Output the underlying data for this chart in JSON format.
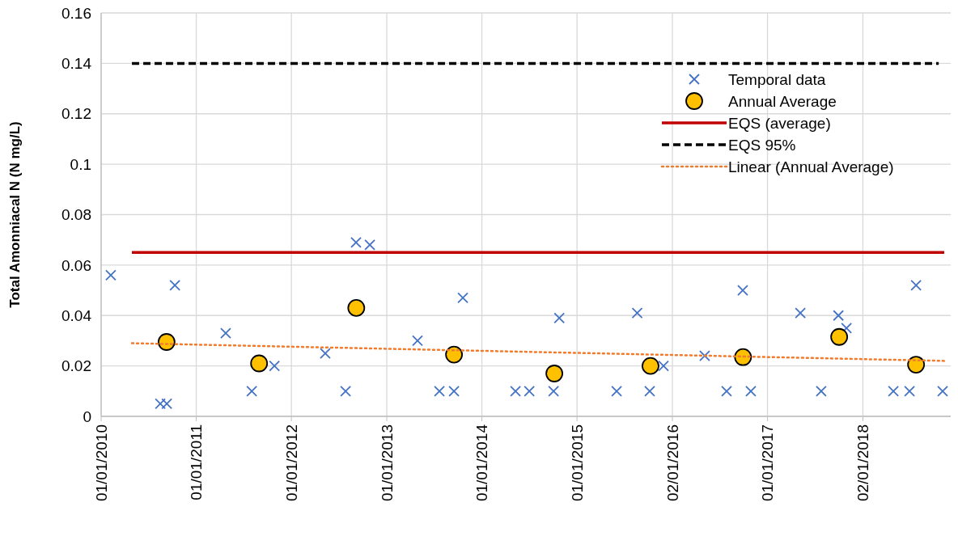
{
  "chart_data": {
    "type": "scatter",
    "ylabel": "Total Amonniacal N (N mg/L)",
    "xlim": [
      "2010-01-01",
      "2018-12-05"
    ],
    "ylim": [
      0,
      0.16
    ],
    "xticks": [
      {
        "value": "2010-01-01",
        "label": "01/01/2010"
      },
      {
        "value": "2011-01-01",
        "label": "01/01/2011"
      },
      {
        "value": "2012-01-01",
        "label": "01/01/2012"
      },
      {
        "value": "2013-01-01",
        "label": "01/01/2013"
      },
      {
        "value": "2014-01-01",
        "label": "01/01/2014"
      },
      {
        "value": "2015-01-01",
        "label": "01/01/2015"
      },
      {
        "value": "2016-01-02",
        "label": "02/01/2016"
      },
      {
        "value": "2017-01-01",
        "label": "01/01/2017"
      },
      {
        "value": "2018-01-02",
        "label": "02/01/2018"
      }
    ],
    "yticks": [
      0,
      0.02,
      0.04,
      0.06,
      0.08,
      0.1,
      0.12,
      0.14,
      0.16
    ],
    "grid": true,
    "legend": "top right",
    "series": [
      {
        "name": "Temporal data",
        "marker": "cross",
        "color": "#4472c4",
        "x": [
          "2010-02-07",
          "2010-08-16",
          "2010-09-10",
          "2010-10-11",
          "2011-04-24",
          "2011-08-02",
          "2011-10-28",
          "2012-05-10",
          "2012-07-27",
          "2012-09-05",
          "2012-10-28",
          "2013-04-29",
          "2013-07-22",
          "2013-09-16",
          "2013-10-20",
          "2014-05-10",
          "2014-07-02",
          "2014-10-03",
          "2014-10-25",
          "2015-06-02",
          "2015-08-20",
          "2015-10-07",
          "2015-11-29",
          "2016-05-05",
          "2016-07-28",
          "2016-09-28",
          "2016-10-29",
          "2017-05-07",
          "2017-07-26",
          "2017-09-30",
          "2017-10-31",
          "2018-04-29",
          "2018-06-30",
          "2018-07-25",
          "2018-11-04"
        ],
        "values": [
          0.056,
          0.005,
          0.005,
          0.052,
          0.033,
          0.01,
          0.02,
          0.025,
          0.01,
          0.069,
          0.068,
          0.03,
          0.01,
          0.01,
          0.047,
          0.01,
          0.01,
          0.01,
          0.039,
          0.01,
          0.041,
          0.01,
          0.02,
          0.024,
          0.01,
          0.05,
          0.01,
          0.041,
          0.01,
          0.04,
          0.035,
          0.01,
          0.01,
          0.052,
          0.01
        ]
      },
      {
        "name": "Annual Average",
        "marker": "circle",
        "color": "#ffc000",
        "x": [
          "2010-09-09",
          "2011-08-30",
          "2012-09-06",
          "2013-09-16",
          "2014-10-06",
          "2015-10-10",
          "2016-09-29",
          "2017-10-03",
          "2018-07-25"
        ],
        "values": [
          0.0295,
          0.021,
          0.043,
          0.0245,
          0.017,
          0.02,
          0.0235,
          0.0315,
          0.0205
        ]
      },
      {
        "name": "EQS (average)",
        "type": "line",
        "marker": "none",
        "line_style": "solid",
        "color": "#c00000",
        "x": [
          "2010-04-29",
          "2018-11-10"
        ],
        "values": [
          0.065,
          0.065
        ]
      },
      {
        "name": "EQS 95%",
        "type": "line",
        "marker": "none",
        "line_style": "dashed",
        "color": "#000000",
        "x": [
          "2010-04-29",
          "2018-10-20"
        ],
        "values": [
          0.14,
          0.14
        ]
      },
      {
        "name": "Linear (Annual Average)",
        "type": "line",
        "marker": "none",
        "line_style": "dotted",
        "color": "#ed7d31",
        "x": [
          "2010-04-29",
          "2018-11-10"
        ],
        "values": [
          0.029,
          0.022
        ]
      }
    ]
  }
}
